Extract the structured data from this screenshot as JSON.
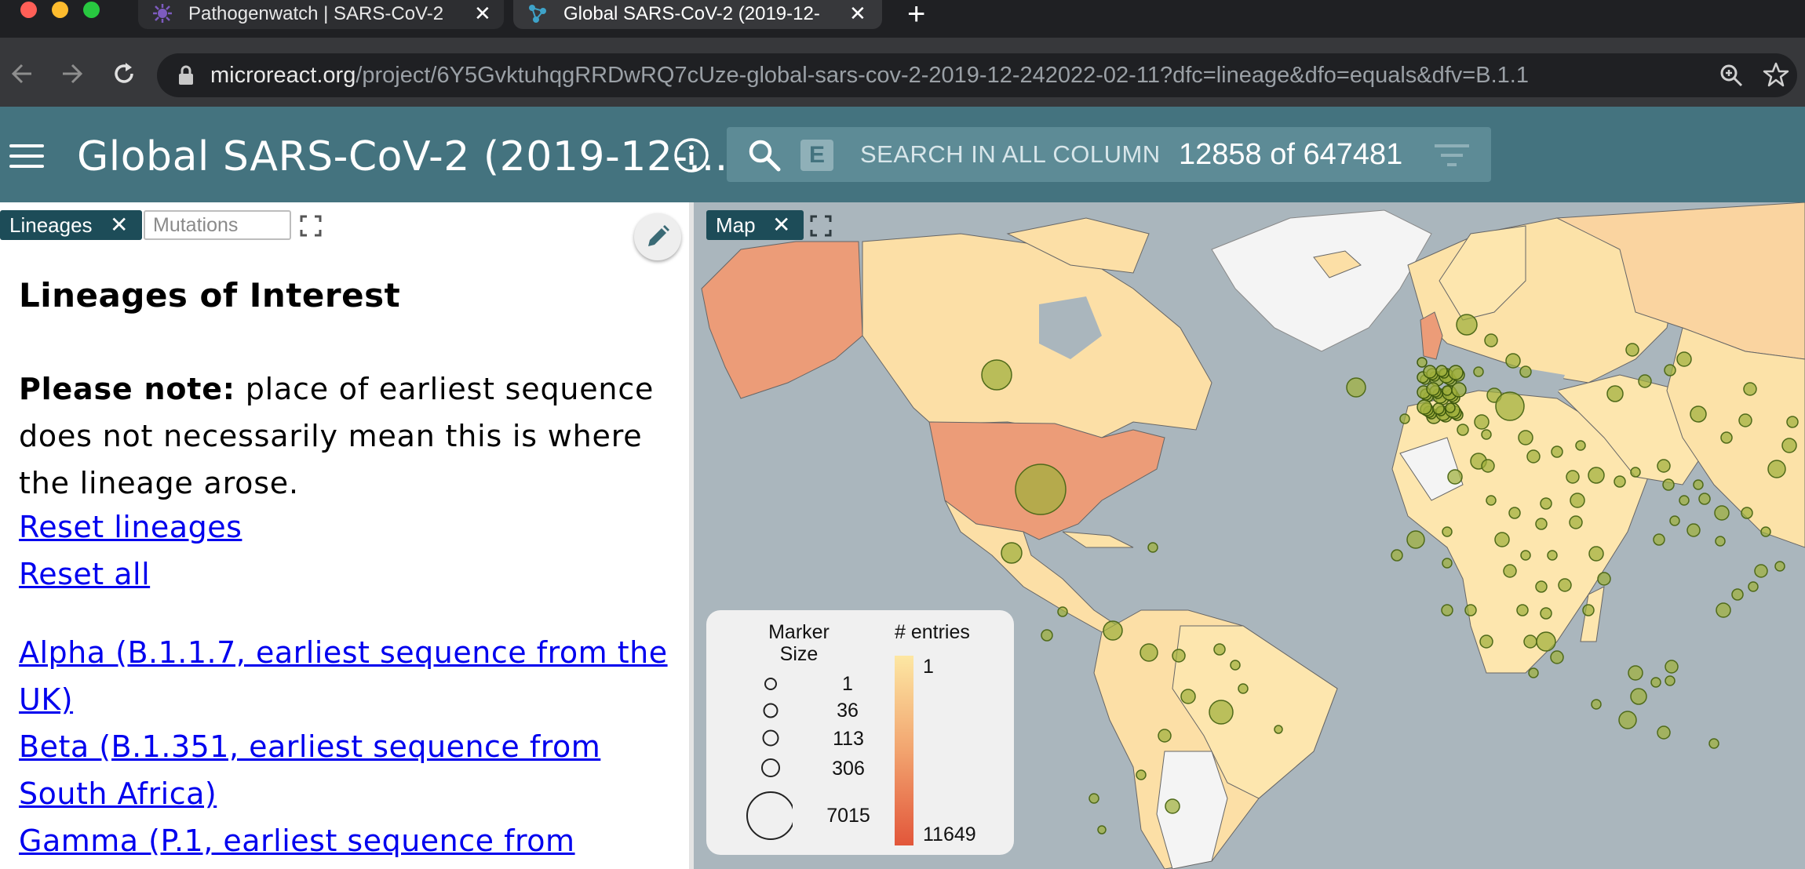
{
  "browser": {
    "tabs": [
      {
        "title": "Pathogenwatch | SARS-CoV-2",
        "active": false,
        "icon": "pathogenwatch-icon"
      },
      {
        "title": "Global SARS-CoV-2 (2019-12-",
        "active": true,
        "icon": "microreact-icon"
      }
    ],
    "new_tab_symbol": "+",
    "url_host": "microreact.org",
    "url_path": "/project/6Y5GvktuhqgRRDwRQ7cUze-global-sars-cov-2-2019-12-242022-02-11?dfc=lineage&dfo=equals&dfv=B.1.1"
  },
  "header": {
    "title": "Global SARS-CoV-2 (2019-12-...",
    "search_badge": "E",
    "search_placeholder": "SEARCH IN ALL COLUMN",
    "row_count": "12858 of 647481"
  },
  "left_panel": {
    "tabs": [
      {
        "label": "Lineages",
        "active": true
      },
      {
        "label": "Mutations",
        "active": false
      }
    ],
    "heading": "Lineages of Interest",
    "note_bold": "Please note:",
    "note_text": " place of earliest sequence does not necessarily mean this is where the lineage arose.",
    "links": [
      "Reset lineages",
      "Reset all"
    ],
    "lineage_links": [
      "Alpha (B.1.1.7, earliest sequence from the UK)",
      "Beta (B.1.351, earliest sequence from South Africa)",
      "Gamma (P.1, earliest sequence from"
    ]
  },
  "map_panel": {
    "tab_label": "Map",
    "legend": {
      "marker_size_title": "Marker Size",
      "entries_title": "# entries",
      "marker_sizes": [
        "1",
        "36",
        "113",
        "306",
        "7015"
      ],
      "entries_min": "1",
      "entries_max": "11649"
    },
    "colors": {
      "scale_low": "#fde7a3",
      "scale_high": "#e2563a",
      "marker": "#9fb03c"
    }
  }
}
